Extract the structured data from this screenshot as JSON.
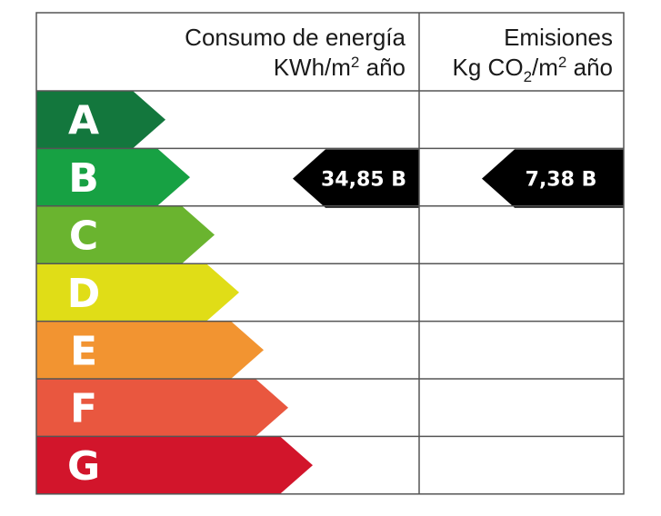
{
  "header": {
    "energy": {
      "line1": "Consumo de energía",
      "line2_pre": "KWh/m",
      "line2_sup": "2",
      "line2_post": " año"
    },
    "emissions": {
      "line1": "Emisiones",
      "line2_pre": "Kg CO",
      "line2_sub": "2",
      "line2_mid": "/m",
      "line2_sup": "2",
      "line2_post": " año"
    }
  },
  "ratings": [
    {
      "letter": "A",
      "color": "#13773d"
    },
    {
      "letter": "B",
      "color": "#17a143"
    },
    {
      "letter": "C",
      "color": "#6ab42f"
    },
    {
      "letter": "D",
      "color": "#e0dd17"
    },
    {
      "letter": "E",
      "color": "#f29431"
    },
    {
      "letter": "F",
      "color": "#e9573f"
    },
    {
      "letter": "G",
      "color": "#d2152b"
    }
  ],
  "energy_value": {
    "label": "34,85 B",
    "rating": "B"
  },
  "emissions_value": {
    "label": "7,38 B",
    "rating": "B"
  },
  "marker_color": "#000000"
}
